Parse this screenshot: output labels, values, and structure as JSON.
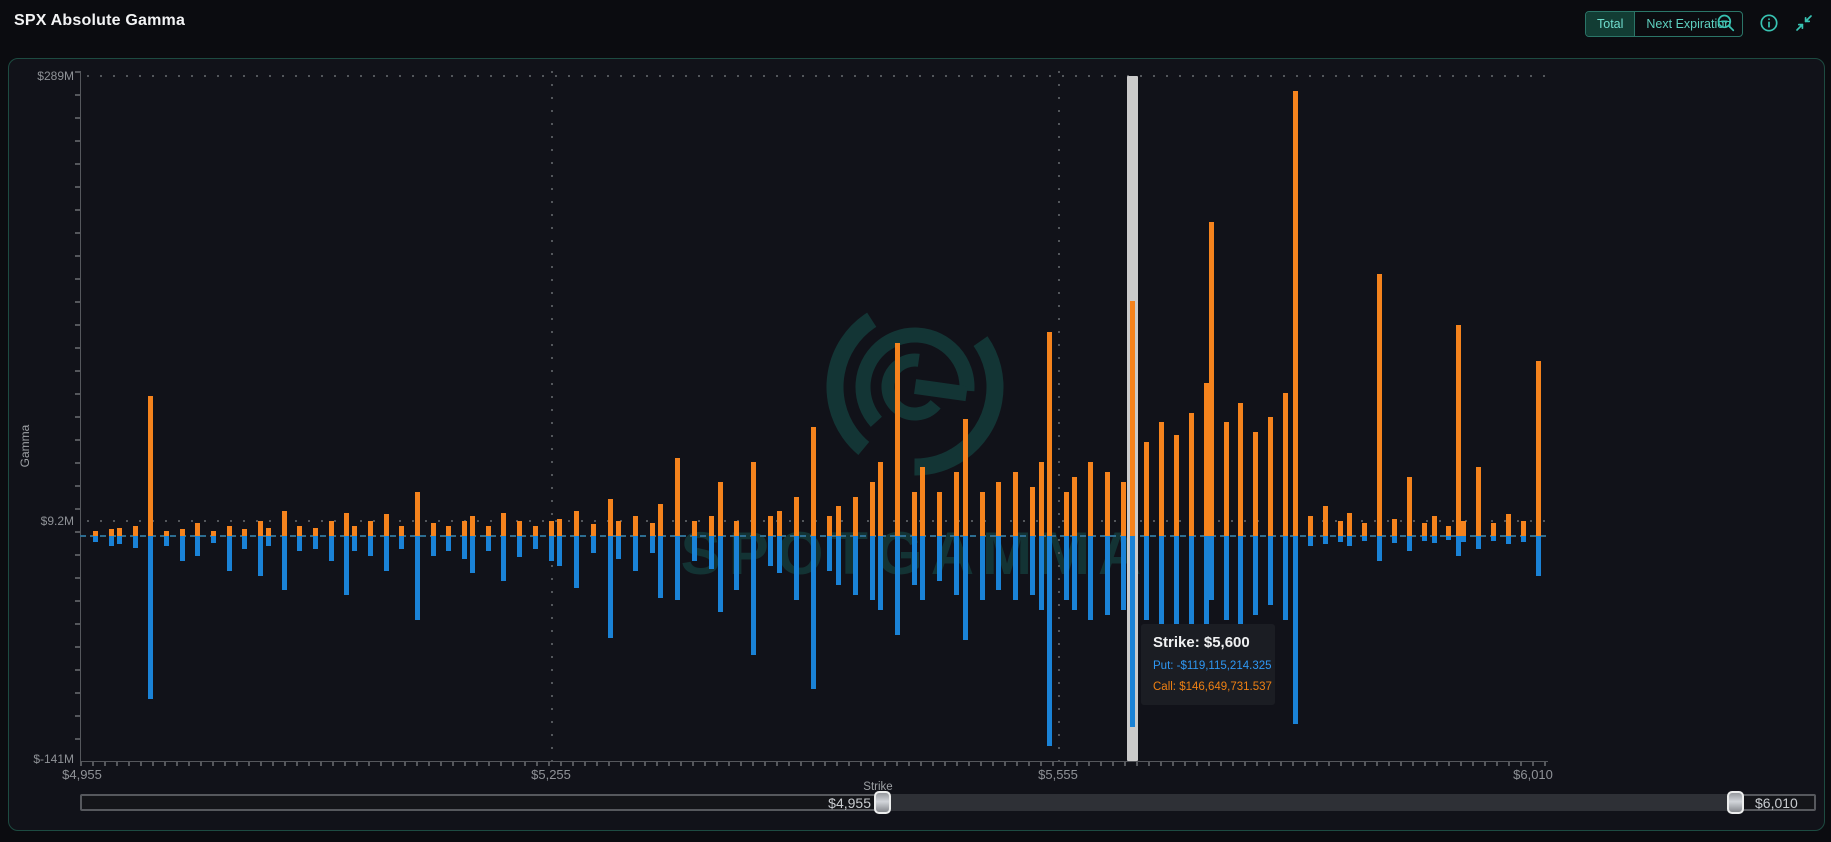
{
  "header": {
    "title": "SPX Absolute Gamma",
    "toggle": [
      {
        "label": "Total",
        "selected": true
      },
      {
        "label": "Next Expiration",
        "selected": false
      }
    ],
    "icons": [
      "zoom-out",
      "info",
      "collapse"
    ]
  },
  "axes": {
    "y_title": "Gamma",
    "x_title": "Strike",
    "y_ticks": [
      "$289M",
      "$9.2M",
      "$-141M"
    ],
    "x_ticks": [
      "$4,955",
      "$5,255",
      "$5,555",
      "$6,010"
    ]
  },
  "watermark": {
    "text": "SPOTGAMMA"
  },
  "tooltip": {
    "strike_label": "Strike: $5,600",
    "put_label": "Put: -$119,115,214.325",
    "call_label": "Call: $146,649,731.537"
  },
  "slider": {
    "min_label": "$4,955",
    "max_label": "$6,010"
  },
  "colors": {
    "call": "#f5831d",
    "put": "#1a82d6",
    "accent_teal": "#38c3b2",
    "panel_border": "#1d4b41",
    "zero_line": "#2d6d90",
    "highlight_band": "#cbcbcb",
    "tooltip_put_text": "#2e97f2",
    "tooltip_call_text": "#ee8013"
  },
  "chart_data": {
    "type": "bar",
    "title": "SPX Absolute Gamma",
    "xlabel": "Strike",
    "ylabel": "Gamma",
    "units": "USD millions",
    "y_range_M": [
      -141,
      289
    ],
    "y_tick_labels": [
      "$289M",
      "$9.2M",
      "$-141M"
    ],
    "x_tick_labels": [
      "$4,955",
      "$5,255",
      "$5,555",
      "$6,010"
    ],
    "grid": "dotted",
    "series_names": [
      "Call",
      "Put"
    ],
    "selected": {
      "strike": 5600,
      "call": 146649731.537,
      "put": -119115214.325
    },
    "x_anchors": [
      [
        4955,
        71
      ],
      [
        5255,
        542
      ],
      [
        5555,
        1049
      ],
      [
        5600,
        1123
      ],
      [
        6010,
        1529
      ]
    ],
    "bars": [
      [
        4965,
        3.1,
        -3.7
      ],
      [
        4975,
        4.3,
        -6.2
      ],
      [
        4980,
        4.9,
        -4.9
      ],
      [
        4990,
        6.2,
        -7.4
      ],
      [
        5000,
        87.7,
        -101.9
      ],
      [
        5010,
        3.1,
        -6.2
      ],
      [
        5020,
        4.3,
        -15.4
      ],
      [
        5030,
        8.0,
        -12.3
      ],
      [
        5040,
        3.1,
        -4.3
      ],
      [
        5050,
        6.2,
        -21.6
      ],
      [
        5060,
        4.3,
        -8.0
      ],
      [
        5070,
        9.3,
        -24.7
      ],
      [
        5075,
        4.9,
        -6.2
      ],
      [
        5085,
        15.4,
        -34.0
      ],
      [
        5095,
        6.2,
        -9.3
      ],
      [
        5105,
        4.9,
        -8.0
      ],
      [
        5115,
        9.3,
        -15.4
      ],
      [
        5125,
        14.2,
        -37.1
      ],
      [
        5130,
        6.2,
        -9.3
      ],
      [
        5140,
        9.3,
        -12.3
      ],
      [
        5150,
        13.6,
        -21.6
      ],
      [
        5160,
        6.2,
        -8.0
      ],
      [
        5170,
        27.8,
        -52.5
      ],
      [
        5180,
        8.0,
        -12.3
      ],
      [
        5190,
        6.2,
        -9.3
      ],
      [
        5200,
        9.3,
        -14.2
      ],
      [
        5205,
        12.3,
        -22.9
      ],
      [
        5215,
        6.2,
        -9.3
      ],
      [
        5225,
        14.2,
        -27.8
      ],
      [
        5235,
        9.3,
        -13.0
      ],
      [
        5245,
        6.2,
        -8.0
      ],
      [
        5255,
        9.3,
        -15.4
      ],
      [
        5260,
        10.5,
        -18.5
      ],
      [
        5270,
        15.4,
        -32.7
      ],
      [
        5280,
        7.4,
        -10.5
      ],
      [
        5290,
        22.9,
        -63.6
      ],
      [
        5295,
        9.3,
        -14.2
      ],
      [
        5305,
        12.3,
        -21.6
      ],
      [
        5315,
        8.0,
        -10.5
      ],
      [
        5320,
        19.8,
        -38.9
      ],
      [
        5330,
        48.8,
        -40.1
      ],
      [
        5340,
        9.3,
        -15.4
      ],
      [
        5350,
        12.3,
        -20.4
      ],
      [
        5355,
        34.0,
        -47.6
      ],
      [
        5365,
        9.3,
        -34.0
      ],
      [
        5375,
        46.3,
        -74.1
      ],
      [
        5385,
        12.3,
        -18.5
      ],
      [
        5390,
        15.4,
        -22.9
      ],
      [
        5400,
        24.7,
        -40.1
      ],
      [
        5410,
        67.9,
        -95.7
      ],
      [
        5420,
        12.3,
        -21.6
      ],
      [
        5425,
        18.5,
        -30.9
      ],
      [
        5435,
        24.7,
        -37.1
      ],
      [
        5445,
        34.0,
        -40.1
      ],
      [
        5450,
        46.3,
        -46.3
      ],
      [
        5460,
        120.4,
        -61.8
      ],
      [
        5470,
        27.8,
        -30.9
      ],
      [
        5475,
        43.2,
        -40.1
      ],
      [
        5485,
        27.8,
        -27.8
      ],
      [
        5495,
        40.1,
        -37.1
      ],
      [
        5500,
        72.9,
        -64.8
      ],
      [
        5510,
        27.8,
        -40.1
      ],
      [
        5520,
        34.0,
        -34.0
      ],
      [
        5530,
        40.1,
        -40.1
      ],
      [
        5540,
        30.9,
        -37.1
      ],
      [
        5545,
        46.3,
        -46.3
      ],
      [
        5550,
        127.8,
        -131.5
      ],
      [
        5560,
        27.8,
        -40.1
      ],
      [
        5565,
        37.1,
        -46.3
      ],
      [
        5575,
        46.3,
        -52.5
      ],
      [
        5585,
        40.1,
        -49.4
      ],
      [
        5595,
        34.0,
        -46.3
      ],
      [
        5600,
        146.6,
        -119.1
      ],
      [
        5615,
        58.7,
        -52.5
      ],
      [
        5630,
        71.0,
        -64.8
      ],
      [
        5645,
        63.0,
        -71.0
      ],
      [
        5660,
        77.2,
        -58.7
      ],
      [
        5675,
        95.7,
        -77.2
      ],
      [
        5680,
        196.4,
        -40.1
      ],
      [
        5695,
        71.0,
        -52.5
      ],
      [
        5710,
        83.4,
        -64.8
      ],
      [
        5725,
        64.8,
        -49.4
      ],
      [
        5740,
        74.1,
        -43.2
      ],
      [
        5755,
        89.6,
        -52.5
      ],
      [
        5765,
        277.9,
        -117.3
      ],
      [
        5780,
        12.3,
        -6.2
      ],
      [
        5795,
        18.5,
        -4.9
      ],
      [
        5810,
        9.3,
        -3.7
      ],
      [
        5820,
        14.2,
        -6.2
      ],
      [
        5835,
        8.0,
        -3.1
      ],
      [
        5850,
        163.7,
        -15.4
      ],
      [
        5865,
        10.5,
        -4.3
      ],
      [
        5880,
        37.1,
        -9.3
      ],
      [
        5895,
        8.0,
        -3.1
      ],
      [
        5905,
        12.3,
        -4.3
      ],
      [
        5920,
        6.2,
        -2.5
      ],
      [
        5930,
        131.6,
        -12.3
      ],
      [
        5935,
        9.3,
        -3.7
      ],
      [
        5950,
        43.2,
        -8.0
      ],
      [
        5965,
        8.0,
        -3.1
      ],
      [
        5980,
        13.6,
        -4.9
      ],
      [
        5995,
        9.3,
        -3.7
      ],
      [
        6010,
        109.3,
        -24.7
      ]
    ]
  }
}
